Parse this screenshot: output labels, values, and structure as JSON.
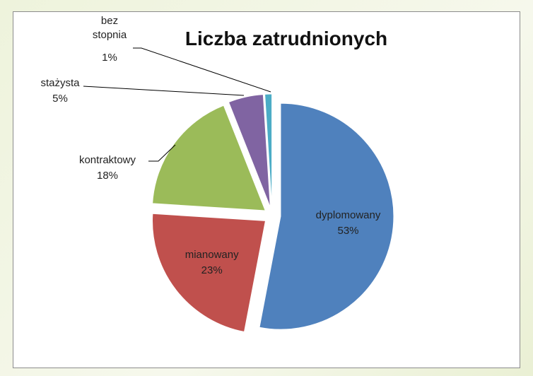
{
  "chart_data": {
    "type": "pie",
    "title": "Liczba zatrudnionych",
    "categories": [
      "dyplomowany",
      "mianowany",
      "kontraktowy",
      "stażysta",
      "bez stopnia"
    ],
    "values": [
      53,
      23,
      18,
      5,
      1
    ],
    "value_labels": [
      "53%",
      "23%",
      "18%",
      "5%",
      "1%"
    ],
    "colors": [
      "#4f81bd",
      "#c0504d",
      "#9bbb59",
      "#8064a2",
      "#4bacc6"
    ]
  }
}
